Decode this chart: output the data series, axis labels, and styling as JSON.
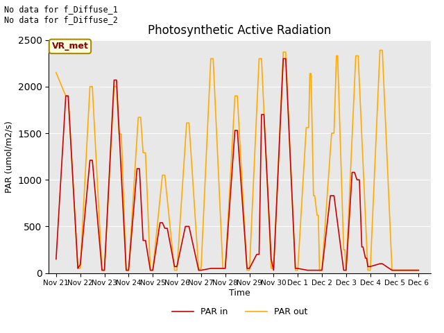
{
  "title": "Photosynthetic Active Radiation",
  "ylabel": "PAR (umol/m2/s)",
  "xlabel": "Time",
  "annotations": [
    "No data for f_Diffuse_1",
    "No data for f_Diffuse_2"
  ],
  "legend_label1": "PAR in",
  "legend_label2": "PAR out",
  "box_label": "VR_met",
  "ylim": [
    0,
    2500
  ],
  "background_color": "#e8e8e8",
  "par_in_color": "#cc0000",
  "par_out_color": "#ffaa00",
  "x_ticks": [
    "Nov 21",
    "Nov 22",
    "Nov 23",
    "Nov 24",
    "Nov 25",
    "Nov 26",
    "Nov 27",
    "Nov 28",
    "Nov 29",
    "Nov 30",
    "Dec 1",
    "Dec 2",
    "Dec 3",
    "Dec 4",
    "Dec 5",
    "Dec 6"
  ],
  "par_in_data": [
    [
      [
        0,
        150
      ],
      [
        0.4,
        1900
      ],
      [
        0.5,
        1900
      ],
      [
        0.9,
        50
      ]
    ],
    [
      [
        1,
        90
      ],
      [
        1.4,
        1210
      ],
      [
        1.5,
        1210
      ],
      [
        1.9,
        30
      ]
    ],
    [
      [
        2,
        30
      ],
      [
        2.4,
        2070
      ],
      [
        2.5,
        2070
      ],
      [
        2.9,
        30
      ]
    ],
    [
      [
        3,
        30
      ],
      [
        3.35,
        1120
      ],
      [
        3.45,
        1120
      ],
      [
        3.6,
        350
      ],
      [
        3.7,
        350
      ],
      [
        3.9,
        30
      ]
    ],
    [
      [
        4,
        30
      ],
      [
        4.3,
        540
      ],
      [
        4.4,
        540
      ],
      [
        4.5,
        480
      ],
      [
        4.6,
        480
      ],
      [
        4.9,
        70
      ]
    ],
    [
      [
        5,
        70
      ],
      [
        5.35,
        500
      ],
      [
        5.5,
        500
      ],
      [
        5.9,
        30
      ]
    ],
    [
      [
        6,
        30
      ],
      [
        6.4,
        50
      ],
      [
        6.9,
        50
      ]
    ],
    [
      [
        7,
        50
      ],
      [
        7.4,
        1530
      ],
      [
        7.5,
        1530
      ],
      [
        7.9,
        50
      ]
    ],
    [
      [
        8,
        50
      ],
      [
        8.3,
        200
      ],
      [
        8.4,
        200
      ],
      [
        8.5,
        1700
      ],
      [
        8.6,
        1700
      ],
      [
        8.9,
        150
      ]
    ],
    [
      [
        9,
        30
      ],
      [
        9.4,
        2300
      ],
      [
        9.5,
        2300
      ],
      [
        9.9,
        50
      ]
    ],
    [
      [
        10,
        50
      ],
      [
        10.4,
        30
      ]
    ],
    [
      [
        11,
        30
      ],
      [
        11.35,
        830
      ],
      [
        11.5,
        830
      ],
      [
        11.9,
        30
      ]
    ],
    [
      [
        12,
        30
      ],
      [
        12.25,
        1080
      ],
      [
        12.35,
        1080
      ],
      [
        12.45,
        1000
      ],
      [
        12.55,
        1000
      ],
      [
        12.65,
        280
      ],
      [
        12.7,
        280
      ],
      [
        12.8,
        160
      ],
      [
        12.85,
        160
      ],
      [
        12.9,
        70
      ]
    ],
    [
      [
        13,
        70
      ],
      [
        13.4,
        100
      ],
      [
        13.5,
        100
      ],
      [
        13.9,
        30
      ]
    ],
    [
      [
        14,
        30
      ],
      [
        14.5,
        30
      ]
    ],
    [
      [
        15,
        30
      ]
    ]
  ],
  "par_out_data": [
    [
      [
        0,
        2150
      ],
      [
        0.4,
        1900
      ],
      [
        0.5,
        1900
      ],
      [
        0.9,
        50
      ]
    ],
    [
      [
        1,
        50
      ],
      [
        1.4,
        2000
      ],
      [
        1.5,
        2000
      ],
      [
        1.9,
        30
      ]
    ],
    [
      [
        2,
        30
      ],
      [
        2.4,
        2000
      ],
      [
        2.5,
        2000
      ],
      [
        2.6,
        1490
      ],
      [
        2.7,
        1490
      ],
      [
        2.9,
        30
      ]
    ],
    [
      [
        3,
        30
      ],
      [
        3.4,
        1670
      ],
      [
        3.5,
        1670
      ],
      [
        3.6,
        1290
      ],
      [
        3.7,
        1290
      ],
      [
        3.9,
        30
      ]
    ],
    [
      [
        4,
        30
      ],
      [
        4.4,
        1050
      ],
      [
        4.5,
        1050
      ],
      [
        4.9,
        30
      ]
    ],
    [
      [
        5,
        30
      ],
      [
        5.4,
        1610
      ],
      [
        5.5,
        1610
      ],
      [
        5.9,
        30
      ]
    ],
    [
      [
        6,
        50
      ],
      [
        6.4,
        2300
      ],
      [
        6.5,
        2300
      ],
      [
        6.9,
        50
      ]
    ],
    [
      [
        7,
        50
      ],
      [
        7.4,
        1900
      ],
      [
        7.5,
        1900
      ],
      [
        7.9,
        30
      ]
    ],
    [
      [
        8,
        30
      ],
      [
        8.4,
        2300
      ],
      [
        8.5,
        2300
      ],
      [
        8.9,
        50
      ]
    ],
    [
      [
        9,
        50
      ],
      [
        9.4,
        2370
      ],
      [
        9.5,
        2370
      ],
      [
        9.9,
        30
      ]
    ],
    [
      [
        10,
        30
      ],
      [
        10.35,
        1560
      ],
      [
        10.45,
        1560
      ],
      [
        10.5,
        2140
      ],
      [
        10.55,
        2140
      ],
      [
        10.65,
        830
      ],
      [
        10.7,
        830
      ],
      [
        10.8,
        620
      ],
      [
        10.85,
        620
      ],
      [
        10.9,
        30
      ]
    ],
    [
      [
        11,
        30
      ],
      [
        11.4,
        1500
      ],
      [
        11.5,
        1500
      ],
      [
        11.6,
        2330
      ],
      [
        11.65,
        2330
      ],
      [
        11.9,
        250
      ],
      [
        11.95,
        250
      ],
      [
        11.99,
        30
      ]
    ],
    [
      [
        12,
        30
      ],
      [
        12.4,
        2330
      ],
      [
        12.5,
        2330
      ],
      [
        12.9,
        30
      ]
    ],
    [
      [
        13,
        30
      ],
      [
        13.4,
        2390
      ],
      [
        13.5,
        2390
      ],
      [
        13.9,
        30
      ]
    ],
    [
      [
        14,
        30
      ],
      [
        14.5,
        30
      ]
    ],
    [
      [
        15,
        30
      ]
    ]
  ]
}
